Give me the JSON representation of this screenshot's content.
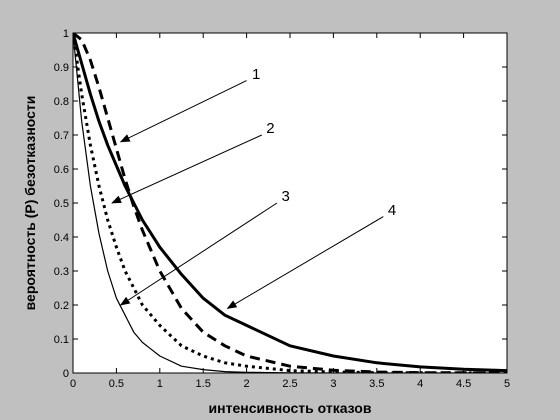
{
  "chart_data": {
    "type": "line",
    "title": "",
    "xlabel": "интенсивность отказов",
    "ylabel": "вероятность (P) безотказности",
    "xlim": [
      0,
      5
    ],
    "ylim": [
      0,
      1
    ],
    "grid": false,
    "xticks": [
      "0",
      "0.5",
      "1",
      "1.5",
      "2",
      "2.5",
      "3",
      "3.5",
      "4",
      "4.5",
      "5"
    ],
    "yticks": [
      "0",
      "0.1",
      "0.2",
      "0.3",
      "0.4",
      "0.5",
      "0.6",
      "0.7",
      "0.8",
      "0.9",
      "1"
    ],
    "x": [
      0,
      0.1,
      0.2,
      0.3,
      0.4,
      0.5,
      0.6,
      0.7,
      0.8,
      0.9,
      1.0,
      1.25,
      1.5,
      1.75,
      2.0,
      2.5,
      3.0,
      3.5,
      4.0,
      4.5,
      5.0
    ],
    "series": [
      {
        "values": [
          1.0,
          0.98,
          0.92,
          0.84,
          0.75,
          0.66,
          0.57,
          0.49,
          0.42,
          0.36,
          0.3,
          0.19,
          0.12,
          0.08,
          0.05,
          0.02,
          0.008,
          0.003,
          0.001,
          0.0005,
          0.0002
        ],
        "style": "dashed",
        "color": "#000000"
      },
      {
        "values": [
          1.0,
          0.91,
          0.82,
          0.74,
          0.67,
          0.61,
          0.55,
          0.5,
          0.45,
          0.41,
          0.37,
          0.29,
          0.22,
          0.17,
          0.14,
          0.08,
          0.05,
          0.03,
          0.018,
          0.011,
          0.007
        ],
        "style": "thick-solid",
        "color": "#000000"
      },
      {
        "values": [
          1.0,
          0.82,
          0.67,
          0.55,
          0.45,
          0.37,
          0.3,
          0.25,
          0.2,
          0.17,
          0.14,
          0.08,
          0.05,
          0.03,
          0.02,
          0.007,
          0.003,
          0.001,
          0.0005,
          0.0002,
          0.0001
        ],
        "style": "dotted",
        "color": "#000000"
      },
      {
        "values": [
          1.0,
          0.74,
          0.55,
          0.41,
          0.3,
          0.22,
          0.17,
          0.12,
          0.09,
          0.07,
          0.05,
          0.02,
          0.01,
          0.004,
          0.002,
          0.0005,
          0.0001,
          0.0,
          0.0,
          0.0,
          0.0
        ],
        "style": "thin-solid",
        "color": "#000000"
      }
    ],
    "annotations": [
      {
        "label": "1",
        "text_x": 4.22,
        "text_y": 0.88,
        "arrow_from_x": 4.0,
        "arrow_from_y": 0.86,
        "arrow_to_x": 0.55,
        "arrow_to_y": 0.68
      },
      {
        "label": "2",
        "text_x": 4.55,
        "text_y": 0.72,
        "arrow_from_x": 4.35,
        "arrow_from_y": 0.7,
        "arrow_to_x": 0.45,
        "arrow_to_y": 0.5
      },
      {
        "label": "3",
        "text_x": 4.9,
        "text_y": 0.52,
        "arrow_from_x": 4.7,
        "arrow_from_y": 0.5,
        "arrow_to_x": 0.55,
        "arrow_to_y": 0.2
      },
      {
        "label": "4",
        "text_x": 7.35,
        "text_y": 0.48,
        "arrow_from_x": 7.15,
        "arrow_from_y": 0.46,
        "arrow_to_x": 1.78,
        "arrow_to_y": 0.19
      }
    ]
  }
}
